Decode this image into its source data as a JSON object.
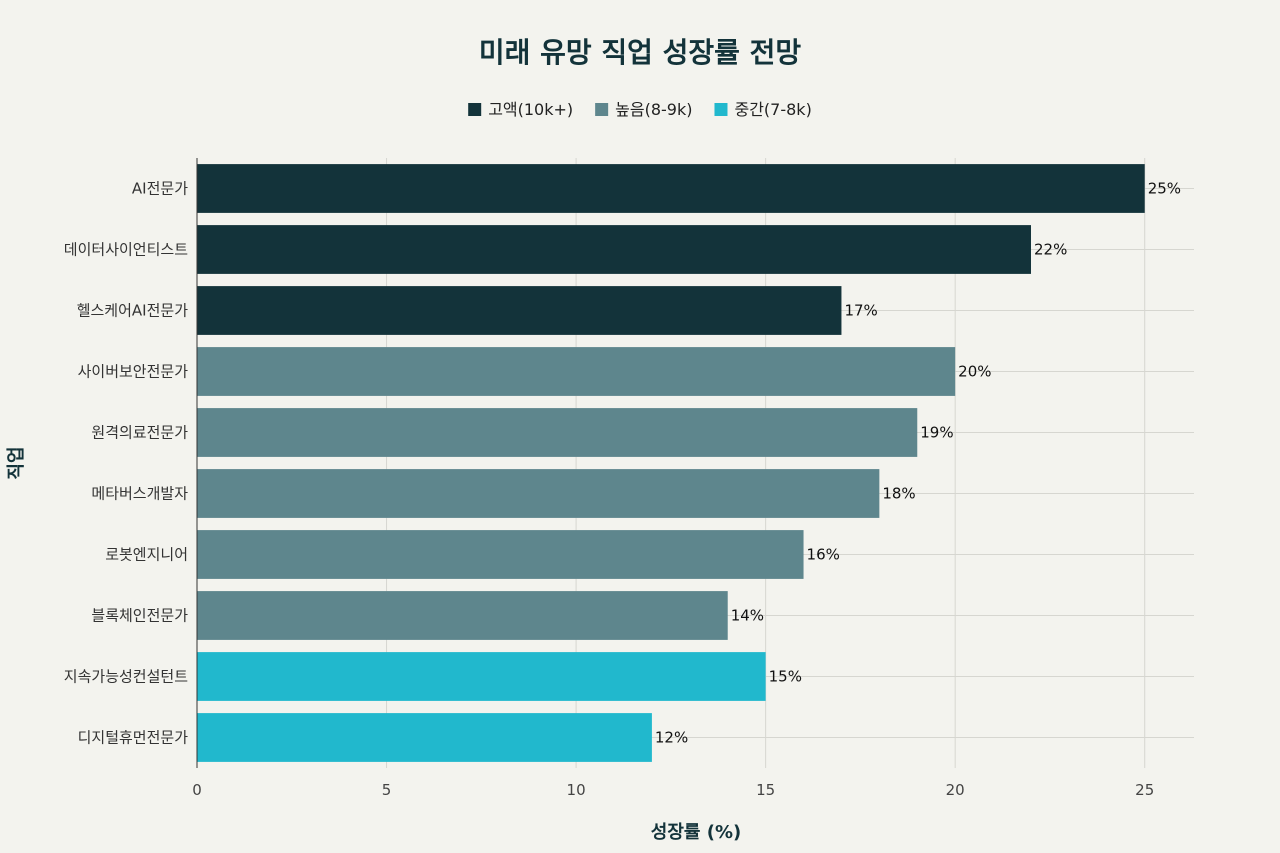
{
  "chart_data": {
    "type": "bar",
    "orientation": "horizontal",
    "title": "미래 유망 직업 성장률 전망",
    "xlabel": "성장률 (%)",
    "ylabel": "직업",
    "xlim": [
      0,
      26.3
    ],
    "x_ticks": [
      0,
      5,
      10,
      15,
      20,
      25
    ],
    "grid": true,
    "legend_position": "top-center",
    "value_suffix": "%",
    "legend": [
      {
        "key": "high_salary",
        "label": "고액(10k+)",
        "color": "#13333a"
      },
      {
        "key": "mid_high",
        "label": "높음(8-9k)",
        "color": "#5e868d"
      },
      {
        "key": "mid",
        "label": "중간(7-8k)",
        "color": "#21b8cd"
      }
    ],
    "bars": [
      {
        "category": "AI전문가",
        "value": 25,
        "group": "high_salary"
      },
      {
        "category": "데이터사이언티스트",
        "value": 22,
        "group": "high_salary"
      },
      {
        "category": "헬스케어AI전문가",
        "value": 17,
        "group": "high_salary"
      },
      {
        "category": "사이버보안전문가",
        "value": 20,
        "group": "mid_high"
      },
      {
        "category": "원격의료전문가",
        "value": 19,
        "group": "mid_high"
      },
      {
        "category": "메타버스개발자",
        "value": 18,
        "group": "mid_high"
      },
      {
        "category": "로봇엔지니어",
        "value": 16,
        "group": "mid_high"
      },
      {
        "category": "블록체인전문가",
        "value": 14,
        "group": "mid_high"
      },
      {
        "category": "지속가능성컨설턴트",
        "value": 15,
        "group": "mid"
      },
      {
        "category": "디지털휴먼전문가",
        "value": 12,
        "group": "mid"
      }
    ]
  }
}
